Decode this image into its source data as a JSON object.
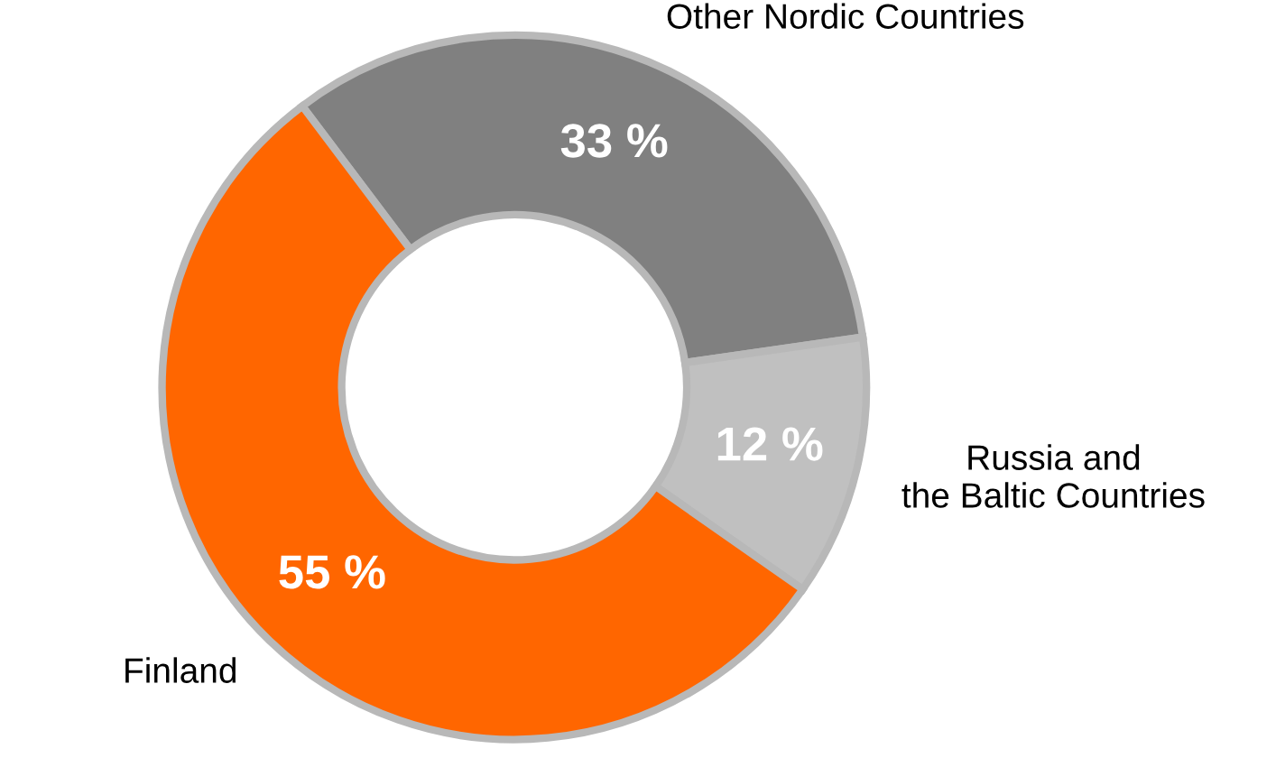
{
  "chart_data": {
    "type": "donut",
    "categories": [
      "Other Nordic Countries",
      "Russia and\nthe Baltic Countries",
      "Finland"
    ],
    "values": [
      33,
      12,
      55
    ],
    "colors": [
      "#808080",
      "#c0c0c0",
      "#ff6600"
    ],
    "value_labels": [
      "33 %",
      "12 %",
      "55 %"
    ],
    "legend": false
  }
}
